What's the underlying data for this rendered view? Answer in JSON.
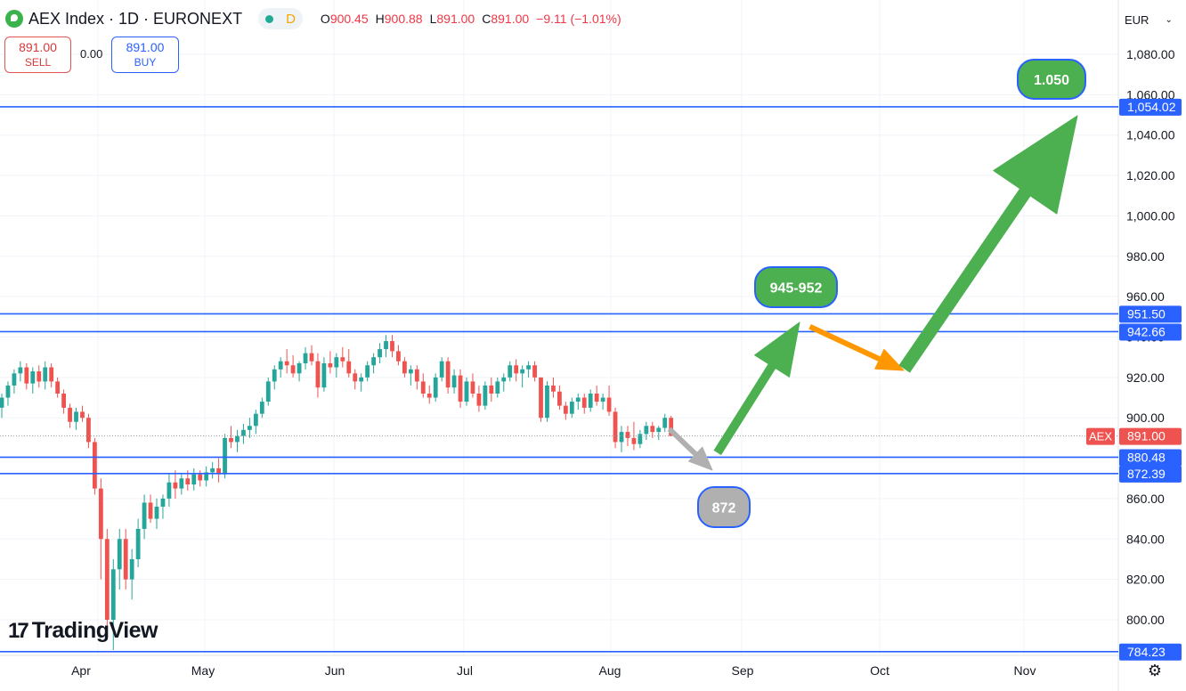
{
  "header": {
    "title": "AEX Index · 1D · EURONEXT",
    "status_letter": "D",
    "ohlc": {
      "o_label": "O",
      "o": "900.45",
      "h_label": "H",
      "h": "900.88",
      "l_label": "L",
      "l": "891.00",
      "c_label": "C",
      "c": "891.00",
      "change": "−9.11 (−1.01%)"
    }
  },
  "trade": {
    "sell_price": "891.00",
    "sell_label": "SELL",
    "spread": "0.00",
    "buy_price": "891.00",
    "buy_label": "BUY"
  },
  "currency": "EUR",
  "branding": "TradingView",
  "icons": {
    "logo": "aex-flag-icon",
    "status": "market-status-icon",
    "settings": "gear-icon",
    "dropdown": "chevron-down-icon"
  },
  "colors": {
    "up": "#26a69a",
    "down": "#ef5350",
    "line": "#2962ff",
    "green_arrow": "#4caf50",
    "orange_arrow": "#ff9800",
    "gray_arrow": "#b0b0b0"
  },
  "chart_data": {
    "type": "candlestick",
    "y_range": [
      782,
      1090
    ],
    "y_ticks": [
      "1,080.00",
      "1,060.00",
      "1,040.00",
      "1,020.00",
      "1,000.00",
      "980.00",
      "960.00",
      "940.00",
      "920.00",
      "900.00",
      "880.00",
      "860.00",
      "840.00",
      "820.00",
      "800.00"
    ],
    "x_ticks": [
      "Apr",
      "May",
      "Jun",
      "Jul",
      "Aug",
      "Sep",
      "Oct",
      "Nov"
    ],
    "last_price": {
      "symbol": "AEX",
      "value": 891.0,
      "label": "891.00"
    },
    "horizontal_lines": [
      {
        "value": 1054.02,
        "label": "1,054.02"
      },
      {
        "value": 951.5,
        "label": "951.50"
      },
      {
        "value": 942.66,
        "label": "942.66"
      },
      {
        "value": 880.48,
        "label": "880.48"
      },
      {
        "value": 872.39,
        "label": "872.39"
      },
      {
        "value": 784.23,
        "label": "784.23"
      }
    ],
    "annotations": [
      {
        "text": "1.050",
        "style": "green"
      },
      {
        "text": "945-952",
        "style": "green"
      },
      {
        "text": "872",
        "style": "gray"
      }
    ],
    "candles": [
      [
        905,
        912,
        900,
        910
      ],
      [
        910,
        918,
        906,
        916
      ],
      [
        916,
        924,
        912,
        922
      ],
      [
        922,
        928,
        918,
        925
      ],
      [
        925,
        927,
        914,
        917
      ],
      [
        917,
        925,
        912,
        923
      ],
      [
        923,
        926,
        915,
        918
      ],
      [
        918,
        928,
        914,
        925
      ],
      [
        925,
        927,
        915,
        918
      ],
      [
        918,
        920,
        910,
        912
      ],
      [
        912,
        914,
        902,
        905
      ],
      [
        905,
        907,
        895,
        898
      ],
      [
        898,
        905,
        894,
        903
      ],
      [
        903,
        906,
        898,
        900
      ],
      [
        900,
        902,
        885,
        888
      ],
      [
        888,
        890,
        862,
        865
      ],
      [
        865,
        870,
        820,
        840
      ],
      [
        840,
        845,
        790,
        800
      ],
      [
        800,
        830,
        785,
        825
      ],
      [
        825,
        845,
        815,
        840
      ],
      [
        840,
        845,
        815,
        820
      ],
      [
        820,
        835,
        810,
        830
      ],
      [
        830,
        850,
        826,
        845
      ],
      [
        845,
        862,
        840,
        858
      ],
      [
        858,
        862,
        848,
        850
      ],
      [
        850,
        860,
        845,
        856
      ],
      [
        856,
        862,
        850,
        860
      ],
      [
        860,
        872,
        856,
        868
      ],
      [
        868,
        874,
        860,
        865
      ],
      [
        865,
        872,
        862,
        870
      ],
      [
        870,
        874,
        864,
        867
      ],
      [
        867,
        875,
        864,
        872
      ],
      [
        872,
        874,
        866,
        869
      ],
      [
        869,
        876,
        866,
        873
      ],
      [
        873,
        878,
        870,
        875
      ],
      [
        875,
        880,
        868,
        872
      ],
      [
        872,
        892,
        870,
        890
      ],
      [
        890,
        896,
        885,
        888
      ],
      [
        888,
        894,
        883,
        891
      ],
      [
        891,
        897,
        887,
        894
      ],
      [
        894,
        900,
        890,
        896
      ],
      [
        896,
        904,
        892,
        902
      ],
      [
        902,
        910,
        900,
        908
      ],
      [
        908,
        920,
        906,
        918
      ],
      [
        918,
        926,
        914,
        924
      ],
      [
        924,
        930,
        920,
        928
      ],
      [
        928,
        934,
        922,
        926
      ],
      [
        926,
        931,
        920,
        922
      ],
      [
        922,
        928,
        918,
        927
      ],
      [
        927,
        935,
        924,
        932
      ],
      [
        932,
        936,
        926,
        928
      ],
      [
        928,
        932,
        910,
        915
      ],
      [
        915,
        930,
        913,
        927
      ],
      [
        927,
        933,
        922,
        925
      ],
      [
        925,
        932,
        920,
        930
      ],
      [
        930,
        935,
        925,
        928
      ],
      [
        928,
        934,
        920,
        922
      ],
      [
        922,
        924,
        914,
        918
      ],
      [
        918,
        922,
        913,
        920
      ],
      [
        920,
        928,
        918,
        926
      ],
      [
        926,
        932,
        922,
        930
      ],
      [
        930,
        937,
        927,
        934
      ],
      [
        934,
        941,
        930,
        938
      ],
      [
        938,
        941,
        930,
        933
      ],
      [
        933,
        936,
        926,
        928
      ],
      [
        928,
        930,
        920,
        922
      ],
      [
        922,
        926,
        916,
        924
      ],
      [
        924,
        926,
        914,
        918
      ],
      [
        918,
        922,
        910,
        912
      ],
      [
        912,
        916,
        907,
        910
      ],
      [
        910,
        922,
        908,
        920
      ],
      [
        920,
        930,
        918,
        928
      ],
      [
        928,
        930,
        912,
        915
      ],
      [
        915,
        924,
        912,
        921
      ],
      [
        921,
        924,
        905,
        908
      ],
      [
        908,
        920,
        906,
        918
      ],
      [
        918,
        922,
        910,
        912
      ],
      [
        912,
        916,
        903,
        906
      ],
      [
        906,
        918,
        904,
        916
      ],
      [
        916,
        920,
        908,
        912
      ],
      [
        912,
        920,
        910,
        918
      ],
      [
        918,
        922,
        913,
        920
      ],
      [
        920,
        928,
        918,
        926
      ],
      [
        926,
        929,
        918,
        922
      ],
      [
        922,
        926,
        915,
        924
      ],
      [
        924,
        928,
        920,
        926
      ],
      [
        926,
        928,
        918,
        920
      ],
      [
        920,
        920,
        898,
        900
      ],
      [
        900,
        918,
        898,
        916
      ],
      [
        916,
        920,
        910,
        913
      ],
      [
        913,
        916,
        904,
        906
      ],
      [
        906,
        908,
        899,
        902
      ],
      [
        902,
        910,
        900,
        908
      ],
      [
        908,
        912,
        904,
        910
      ],
      [
        910,
        912,
        902,
        905
      ],
      [
        905,
        914,
        903,
        912
      ],
      [
        912,
        916,
        906,
        908
      ],
      [
        908,
        912,
        904,
        910
      ],
      [
        910,
        916,
        901,
        903
      ],
      [
        903,
        905,
        885,
        888
      ],
      [
        888,
        896,
        883,
        893
      ],
      [
        893,
        896,
        886,
        890
      ],
      [
        890,
        898,
        884,
        887
      ],
      [
        887,
        894,
        885,
        892
      ],
      [
        892,
        898,
        889,
        896
      ],
      [
        896,
        898,
        890,
        893
      ],
      [
        893,
        896,
        889,
        895
      ],
      [
        895,
        902,
        893,
        900
      ],
      [
        900,
        901,
        891,
        891
      ]
    ]
  }
}
